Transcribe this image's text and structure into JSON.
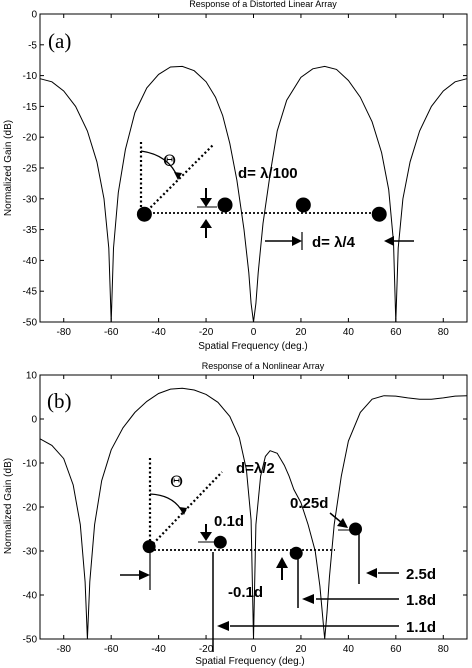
{
  "chart_data": [
    {
      "type": "line",
      "panel_label": "(a)",
      "title": "Response of a Distorted Linear Array",
      "xlabel": "Spatial Frequency (deg.)",
      "ylabel": "Normalized Gain (dB)",
      "xlim": [
        -90,
        90
      ],
      "ylim": [
        -50,
        0
      ],
      "xticks": [
        -80,
        -60,
        -40,
        -20,
        0,
        20,
        40,
        60,
        80
      ],
      "xtick_labels": [
        "-80",
        "-60",
        "-40",
        "-20",
        "0",
        "20",
        "40",
        "60",
        "80"
      ],
      "yticks": [
        0,
        -5,
        -10,
        -15,
        -20,
        -25,
        -30,
        -35,
        -40,
        -45,
        -50
      ],
      "ytick_labels": [
        "0",
        "-5",
        "-10",
        "-15",
        "-20",
        "-25",
        "-30",
        "-35",
        "-40",
        "-45",
        "-50"
      ],
      "grid": false,
      "series": [
        {
          "x": [
            -90,
            -85,
            -80,
            -75,
            -70,
            -66,
            -63,
            -61,
            -60,
            -59,
            -57,
            -54,
            -50,
            -45,
            -40,
            -35,
            -30,
            -25,
            -20,
            -16,
            -13,
            -10,
            -7,
            -4,
            -2,
            -1,
            0,
            1,
            2,
            4,
            7,
            10,
            14,
            20,
            25,
            30,
            35,
            40,
            45,
            50,
            54,
            57,
            59,
            60,
            61,
            63,
            66,
            70,
            75,
            80,
            85,
            90
          ],
          "y": [
            -10.5,
            -11,
            -12.5,
            -15,
            -19,
            -24,
            -30,
            -38,
            -50,
            -38,
            -29,
            -22,
            -16,
            -12,
            -9.8,
            -8.6,
            -8.5,
            -9.2,
            -11,
            -13.5,
            -16.5,
            -21,
            -27,
            -35,
            -42,
            -47,
            -50,
            -47,
            -42,
            -34,
            -26,
            -19,
            -14,
            -10.3,
            -8.9,
            -8.5,
            -9,
            -10.8,
            -13.5,
            -17.5,
            -22.5,
            -28.5,
            -37,
            -50,
            -38,
            -30,
            -24,
            -19,
            -15,
            -12.5,
            -11,
            -10.5
          ]
        }
      ],
      "elements": [
        {
          "x": -46,
          "y": -32.5
        },
        {
          "x": -12,
          "y": -31
        },
        {
          "x": 21,
          "y": -31
        },
        {
          "x": 53,
          "y": -32.5
        }
      ],
      "annotations": {
        "theta": "Θ",
        "spacing_small": "d= λ/100",
        "spacing_large": "d= λ/4"
      }
    },
    {
      "type": "line",
      "panel_label": "(b)",
      "title": "Response of a Nonlinear Array",
      "xlabel": "Spatial Frequency (deg.)",
      "ylabel": "Normalized Gain (dB)",
      "xlim": [
        -90,
        90
      ],
      "ylim": [
        -50,
        10
      ],
      "xticks": [
        -80,
        -60,
        -40,
        -20,
        0,
        20,
        40,
        60,
        80
      ],
      "xtick_labels": [
        "-80",
        "-60",
        "-40",
        "-20",
        "0",
        "20",
        "40",
        "60",
        "80"
      ],
      "yticks": [
        10,
        0,
        -10,
        -20,
        -30,
        -40,
        -50
      ],
      "ytick_labels": [
        "10",
        "0",
        "-10",
        "-20",
        "-30",
        "-40",
        "-50"
      ],
      "grid": false,
      "series": [
        {
          "x": [
            -90,
            -85,
            -80,
            -76,
            -73,
            -71,
            -70,
            -69,
            -67,
            -64,
            -60,
            -55,
            -50,
            -45,
            -40,
            -35,
            -30,
            -25,
            -20,
            -15,
            -10,
            -6,
            -3,
            -1,
            0,
            1,
            3,
            5,
            7,
            10,
            13,
            15,
            17,
            20,
            23,
            26,
            28,
            29,
            30,
            31,
            32,
            34,
            37,
            40,
            45,
            50,
            55,
            60,
            65,
            70,
            75,
            80,
            85,
            90
          ],
          "y": [
            -4.5,
            -6,
            -9,
            -15,
            -24,
            -37,
            -50,
            -37,
            -24,
            -14,
            -7,
            -2,
            1.5,
            4,
            5.8,
            6.8,
            7,
            6.6,
            5.6,
            3.8,
            0.6,
            -4.2,
            -11.5,
            -23,
            -50,
            -24,
            -13,
            -8.5,
            -7.2,
            -7.8,
            -10.5,
            -13,
            -16,
            -19,
            -24,
            -30,
            -38,
            -44,
            -50,
            -44,
            -36,
            -24,
            -13,
            -5,
            1.5,
            4.5,
            5.3,
            5.2,
            4.8,
            4.5,
            4.5,
            4.8,
            5.2,
            5.3
          ]
        }
      ],
      "elements": [
        {
          "x": -44,
          "y": -29
        },
        {
          "x": -14,
          "y": -28
        },
        {
          "x": 18,
          "y": -30.5
        },
        {
          "x": 43,
          "y": -25
        }
      ],
      "annotations": {
        "theta": "Θ",
        "wavelength": "d=λ/2",
        "d_01": "0.1d",
        "d_025": "0.25d",
        "d_m01": "-0.1d",
        "d_25": "2.5d",
        "d_18": "1.8d",
        "d_11": "1.1d"
      }
    }
  ]
}
